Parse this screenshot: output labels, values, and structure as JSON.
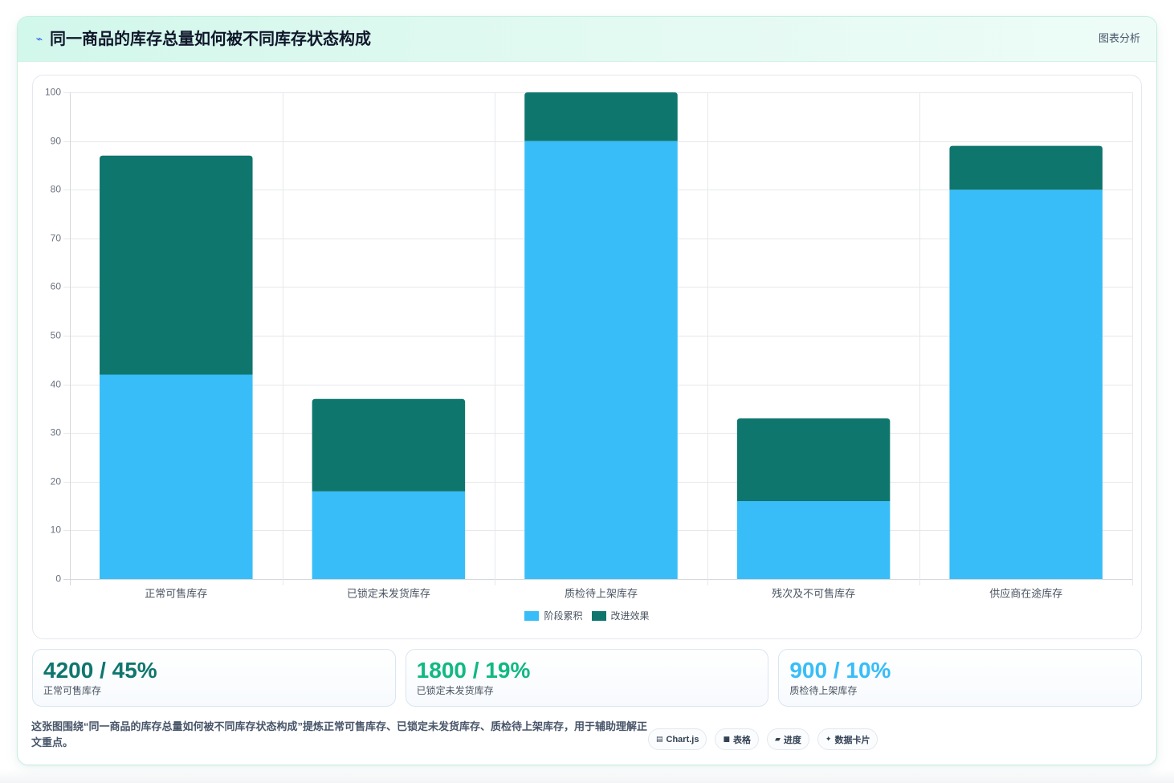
{
  "header": {
    "icon": "pulse-icon",
    "title": "同一商品的库存总量如何被不同库存状态构成",
    "action_label": "图表分析"
  },
  "chart_data": {
    "type": "bar",
    "stacked": true,
    "categories": [
      "正常可售库存",
      "已锁定未发货库存",
      "质检待上架库存",
      "残次及不可售库存",
      "供应商在途库存"
    ],
    "series": [
      {
        "name": "阶段累积",
        "values": [
          42,
          18,
          90,
          16,
          80
        ],
        "color": "#38bdf8"
      },
      {
        "name": "改进效果",
        "values": [
          45,
          19,
          10,
          17,
          9
        ],
        "color": "#0f766e"
      }
    ],
    "ylim": [
      0,
      100
    ],
    "yticks": [
      0,
      10,
      20,
      30,
      40,
      50,
      60,
      70,
      80,
      90,
      100
    ],
    "grid": true,
    "legend": "bottom"
  },
  "stats": [
    {
      "value": "4200 / 45%",
      "label": "正常可售库存",
      "color": "#0f766e"
    },
    {
      "value": "1800 / 19%",
      "label": "已锁定未发货库存",
      "color": "#10b981"
    },
    {
      "value": "900 / 10%",
      "label": "质检待上架库存",
      "color": "#38bdf8"
    }
  ],
  "footer": {
    "description": "这张图围绕“同一商品的库存总量如何被不同库存状态构成”提炼正常可售库存、已锁定未发货库存、质检待上架库存，用于辅助理解正文重点。",
    "tags": [
      {
        "icon": "chart-icon",
        "label": "Chart.js"
      },
      {
        "icon": "table-icon",
        "label": "表格"
      },
      {
        "icon": "progress-icon",
        "label": "进度"
      },
      {
        "icon": "sparkle-icon",
        "label": "数据卡片"
      }
    ]
  }
}
